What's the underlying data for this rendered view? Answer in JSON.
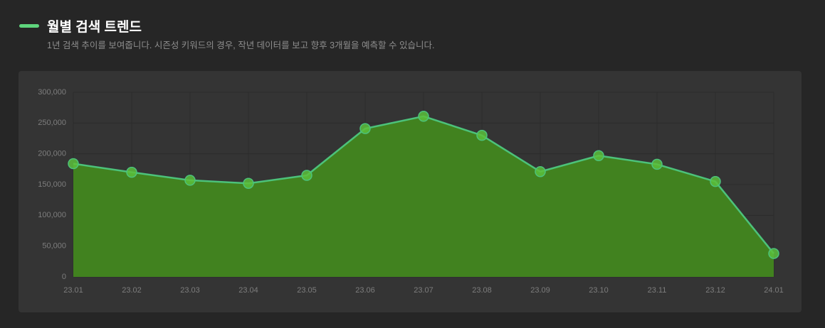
{
  "chart_data": {
    "type": "area",
    "title": "월별 검색 트렌드",
    "subtitle": "1년 검색 추이를 보여줍니다. 시즌성 키워드의 경우, 작년 데이터를 보고 향후 3개월을 예측할 수 있습니다.",
    "categories": [
      "23.01",
      "23.02",
      "23.03",
      "23.04",
      "23.05",
      "23.06",
      "23.07",
      "23.08",
      "23.09",
      "23.10",
      "23.11",
      "23.12",
      "24.01"
    ],
    "values": [
      184000,
      170000,
      157000,
      152000,
      165000,
      241000,
      261000,
      230000,
      171000,
      197000,
      183000,
      155000,
      38000
    ],
    "color": "#4cc27a",
    "fill_color": "#41821f",
    "point_color": "#5cbf3c",
    "ylim": [
      0,
      300000
    ],
    "yticks": [
      0,
      {
        "value": 50000,
        "label": "50,000"
      },
      {
        "value": 100000,
        "label": "100,000"
      },
      {
        "value": 150000,
        "label": "150,000"
      },
      {
        "value": 200000,
        "label": "200,000"
      },
      {
        "value": 250000,
        "label": "250,000"
      },
      {
        "value": 300000,
        "label": "300,000"
      }
    ],
    "grid": true
  }
}
